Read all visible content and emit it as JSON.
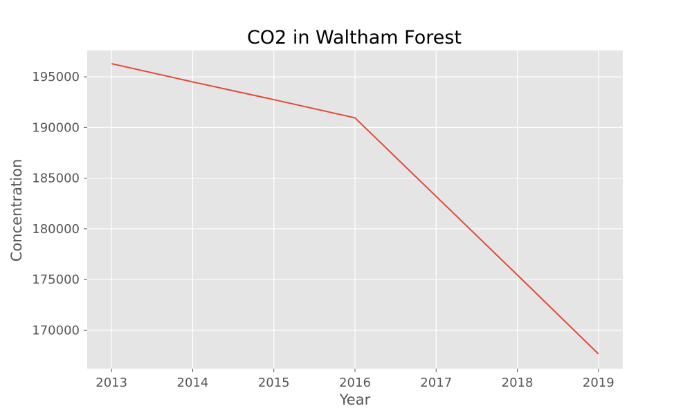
{
  "chart_data": {
    "type": "line",
    "title": "CO2 in Waltham Forest",
    "xlabel": "Year",
    "ylabel": "Concentration",
    "x": [
      2013,
      2014,
      2015,
      2016,
      2017,
      2018,
      2019
    ],
    "series": [
      {
        "values": [
          196300,
          194500,
          192750,
          190950,
          183200,
          175450,
          167650
        ]
      }
    ],
    "xticks": [
      "2013",
      "2014",
      "2015",
      "2016",
      "2017",
      "2018",
      "2019"
    ],
    "yticks": [
      170000,
      175000,
      180000,
      185000,
      190000,
      195000
    ],
    "ytick_labels": [
      "170000",
      "175000",
      "180000",
      "185000",
      "190000",
      "195000"
    ],
    "xlim": [
      2012.7,
      2019.3
    ],
    "ylim": [
      166200,
      197600
    ],
    "grid": true,
    "colors": {
      "line": "#E24A33",
      "plot_background": "#E5E5E5",
      "grid": "#FFFFFF"
    }
  }
}
